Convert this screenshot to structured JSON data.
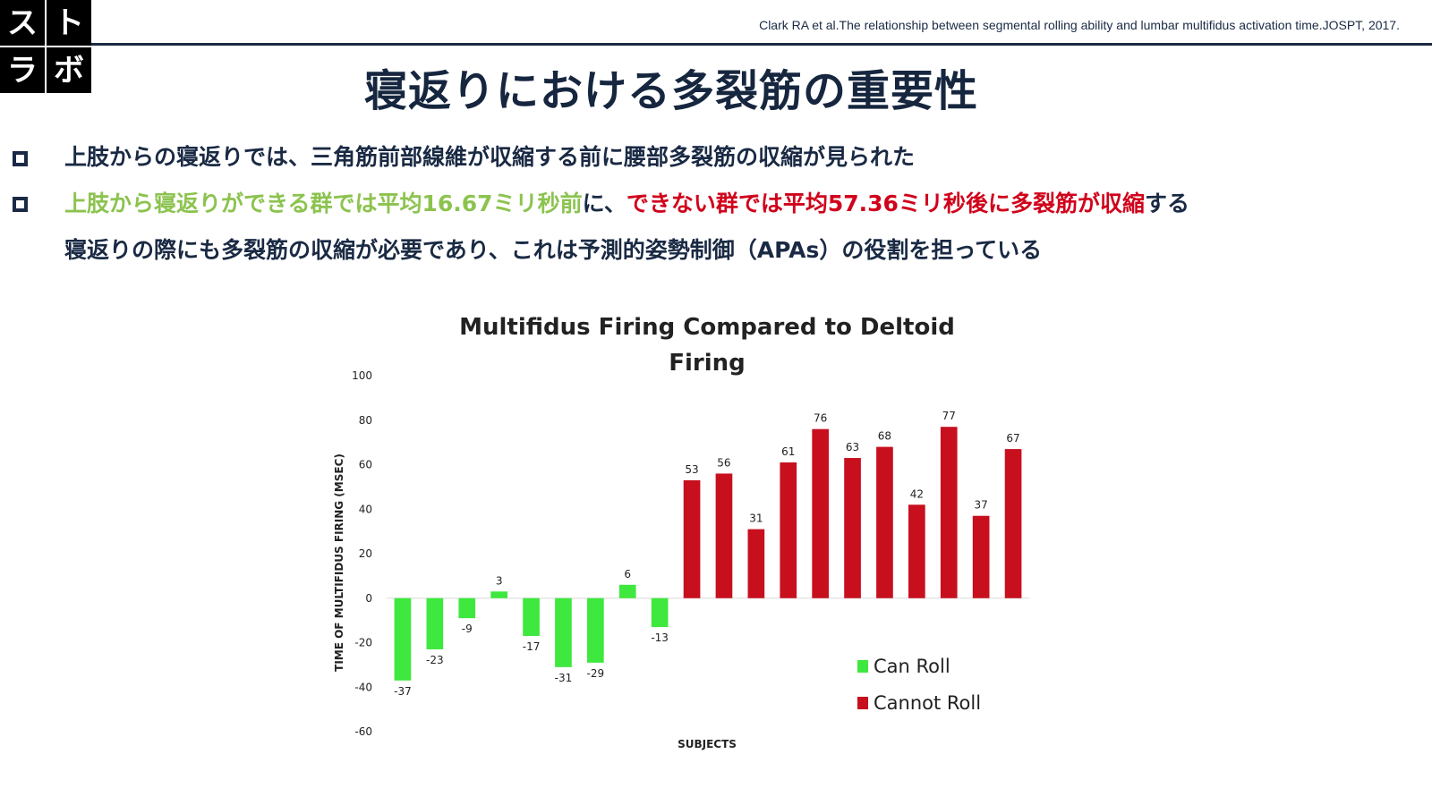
{
  "logo": {
    "chars": [
      "ス",
      "ト",
      "ラ",
      "ボ"
    ]
  },
  "citation": "Clark RA et al.The relationship between segmental rolling ability and lumbar multifidus activation time.JOSPT, 2017.",
  "title": "寝返りにおける多裂筋の重要性",
  "bullets": {
    "line1": "上肢からの寝返りでは、三角筋前部線維が収縮する前に腰部多裂筋の収縮が見られた",
    "line2_green": "上肢から寝返りができる群では平均16.67ミリ秒前",
    "line2_mid": "に、",
    "line2_red": "できない群では平均57.36ミリ秒後に多裂筋が収縮",
    "line2_end": "する",
    "line3": "寝返りの際にも多裂筋の収縮が必要であり、これは予測的姿勢制御（APAs）の役割を担っている"
  },
  "colors": {
    "can_roll": "#3ee83e",
    "cannot_roll": "#c80f1e",
    "text_green": "#8cc34f",
    "text_red": "#d0021b",
    "navy": "#1a2a44"
  },
  "chart_data": {
    "type": "bar",
    "title_lines": [
      "Multifidus Firing Compared to Deltoid",
      "Firing"
    ],
    "xlabel": "SUBJECTS",
    "ylabel": "TIME OF MULTIFIDUS FIRING (MSEC)",
    "ylim": [
      -60,
      100
    ],
    "yticks": [
      100,
      80,
      60,
      40,
      20,
      0,
      -20,
      -40,
      -60
    ],
    "grid": false,
    "legend_position": "bottom-right",
    "series": [
      {
        "name": "Can Roll",
        "values": [
          -37,
          -23,
          -9,
          3,
          -17,
          -31,
          -29,
          6,
          -13
        ]
      },
      {
        "name": "Cannot Roll",
        "values": [
          53,
          56,
          31,
          61,
          76,
          63,
          68,
          42,
          77,
          37,
          67
        ]
      }
    ]
  }
}
